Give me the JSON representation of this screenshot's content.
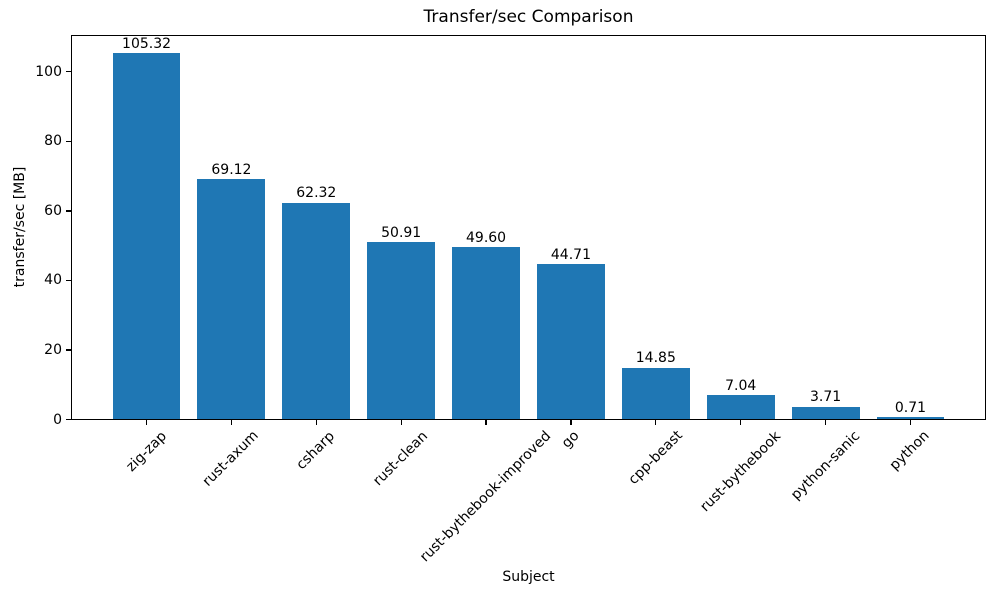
{
  "chart_data": {
    "type": "bar",
    "title": "Transfer/sec Comparison",
    "xlabel": "Subject",
    "ylabel": "transfer/sec [MB]",
    "categories": [
      "zig-zap",
      "rust-axum",
      "csharp",
      "rust-clean",
      "rust-bythebook-improved",
      "go",
      "cpp-beast",
      "rust-bythebook",
      "python-sanic",
      "python"
    ],
    "values": [
      105.32,
      69.12,
      62.32,
      50.91,
      49.6,
      44.71,
      14.85,
      7.04,
      3.71,
      0.71
    ],
    "value_labels": [
      "105.32",
      "69.12",
      "62.32",
      "50.91",
      "49.60",
      "44.71",
      "14.85",
      "7.04",
      "3.71",
      "0.71"
    ],
    "yticks": [
      0,
      20,
      40,
      60,
      80,
      100
    ],
    "ytick_labels": [
      "0",
      "20",
      "40",
      "60",
      "80",
      "100"
    ],
    "ylim": [
      0,
      110.59
    ],
    "bar_color": "#1f77b4",
    "background_color": "#ffffff",
    "text_color": "#000000",
    "grid": false,
    "legend": "none",
    "xtick_label_rotation_deg": 45
  }
}
